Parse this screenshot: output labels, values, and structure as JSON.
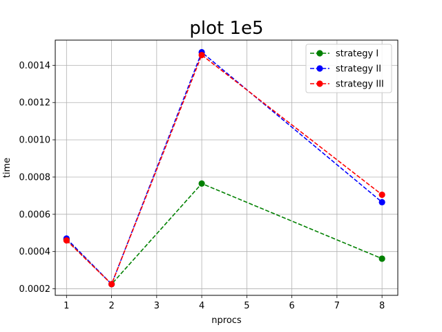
{
  "chart_data": {
    "type": "line",
    "title": "plot 1e5",
    "xlabel": "nprocs",
    "ylabel": "time",
    "x": [
      1,
      2,
      4,
      8
    ],
    "xlim": [
      0.75,
      8.35
    ],
    "ylim": [
      0.000165,
      0.001535
    ],
    "xticks": [
      1,
      2,
      3,
      4,
      5,
      6,
      7,
      8
    ],
    "yticks": [
      0.0002,
      0.0004,
      0.0006,
      0.0008,
      0.001,
      0.0012,
      0.0014
    ],
    "ytick_labels": [
      "0.0002",
      "0.0004",
      "0.0006",
      "0.0008",
      "0.0010",
      "0.0012",
      "0.0014"
    ],
    "grid": true,
    "legend_position": "top-right",
    "series": [
      {
        "name": "strategy I",
        "color": "#008000",
        "linestyle": "dashed",
        "marker": "circle",
        "values": [
          0.000465,
          0.000225,
          0.000765,
          0.000362
        ]
      },
      {
        "name": "strategy II",
        "color": "#0000ff",
        "linestyle": "dashed",
        "marker": "circle",
        "values": [
          0.00047,
          0.000225,
          0.00147,
          0.000665
        ]
      },
      {
        "name": "strategy III",
        "color": "#ff0000",
        "linestyle": "dashed",
        "marker": "circle",
        "values": [
          0.00046,
          0.000225,
          0.001455,
          0.000705
        ]
      }
    ]
  }
}
